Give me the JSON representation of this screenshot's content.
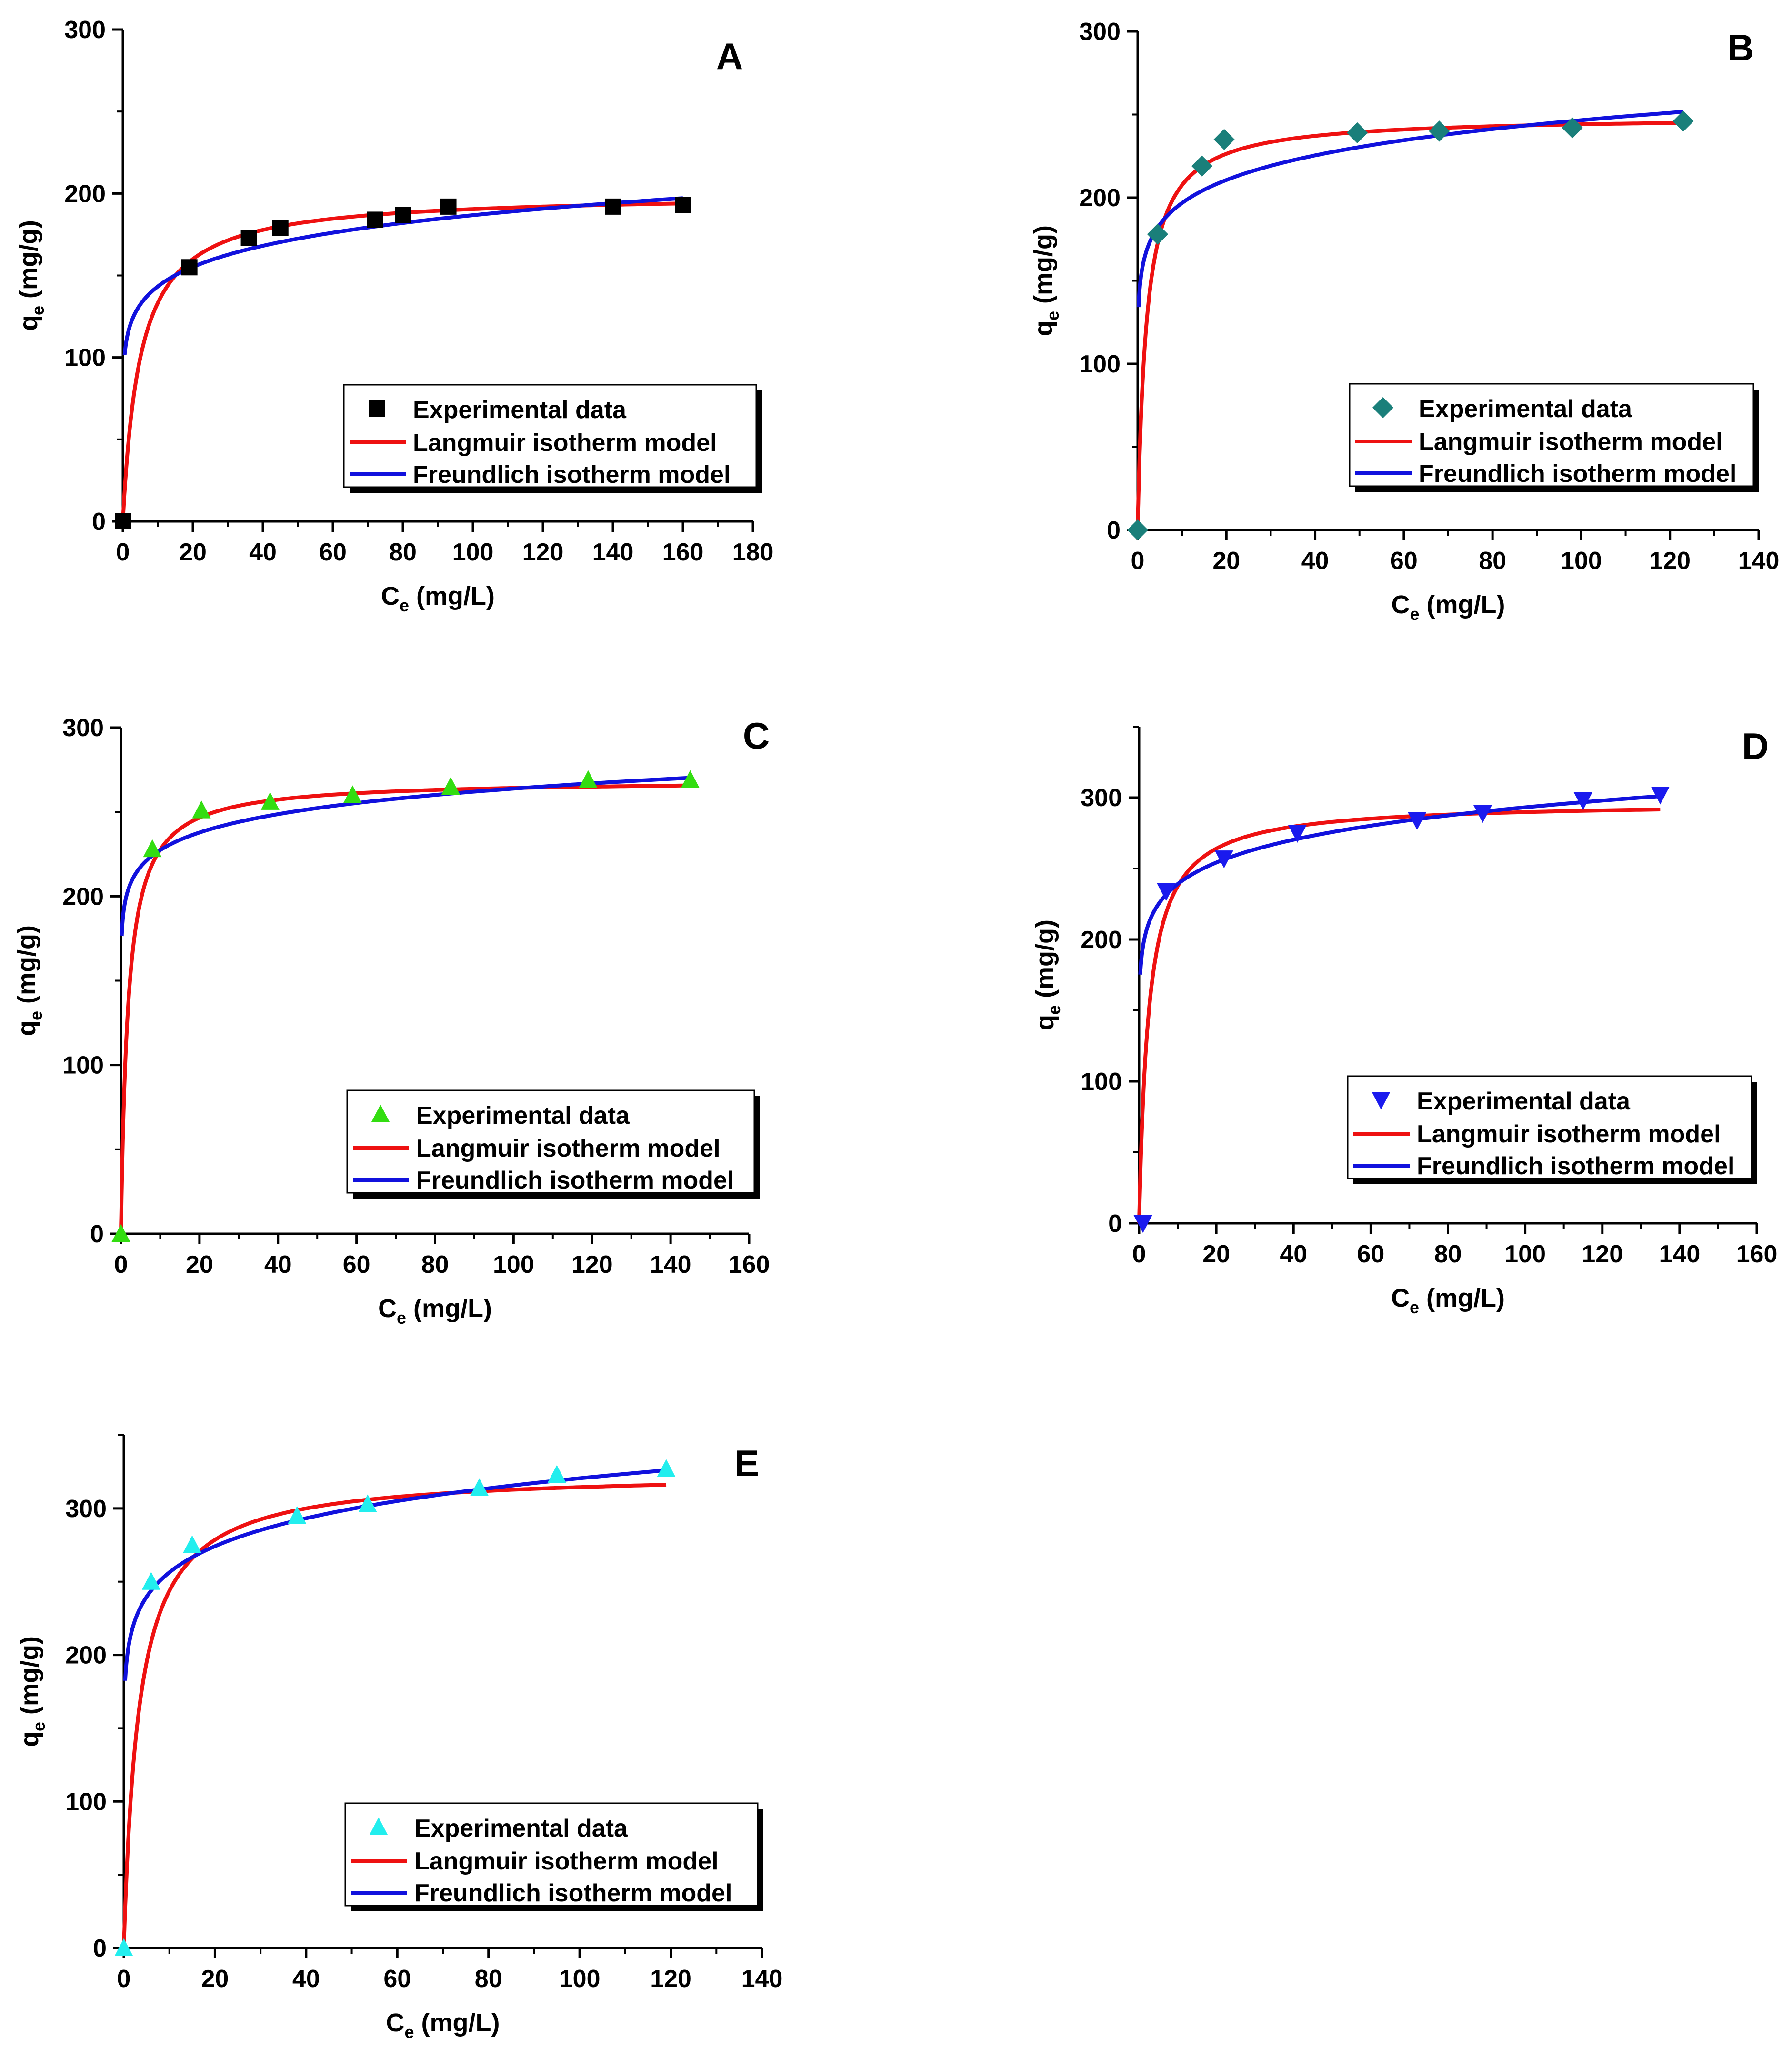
{
  "chart_data": [
    {
      "type": "scatter",
      "panel": "A",
      "xlabel": "C",
      "xlabel_sub": "e",
      "xlabel_unit": " (mg/L)",
      "ylabel": "q",
      "ylabel_sub": "e",
      "ylabel_unit": " (mg/g)",
      "xlim": [
        0,
        180
      ],
      "ylim": [
        0,
        300
      ],
      "xticks": [
        0,
        20,
        40,
        60,
        80,
        100,
        120,
        140,
        160,
        180
      ],
      "yticks": [
        0,
        100,
        200,
        300
      ],
      "marker": "square",
      "marker_color": "#000000",
      "legend": [
        "Experimental data",
        "Langmuir isotherm model",
        "Freundlich isotherm model"
      ],
      "experimental": {
        "x": [
          0,
          19,
          36,
          45,
          72,
          80,
          93,
          140,
          160
        ],
        "y": [
          0,
          155,
          173,
          179,
          184,
          187,
          192,
          192,
          193
        ]
      },
      "langmuir": {
        "qmax": 200,
        "KL": 0.2,
        "xmax": 160
      },
      "freundlich": {
        "KF": 110,
        "n": 8.7,
        "xmin": 0.5,
        "xmax": 160
      }
    },
    {
      "type": "scatter",
      "panel": "B",
      "xlabel": "C",
      "xlabel_sub": "e",
      "xlabel_unit": " (mg/L)",
      "ylabel": "q",
      "ylabel_sub": "e",
      "ylabel_unit": " (mg/g)",
      "xlim": [
        0,
        140
      ],
      "ylim": [
        0,
        300
      ],
      "xticks": [
        0,
        20,
        40,
        60,
        80,
        100,
        120,
        140
      ],
      "yticks": [
        0,
        100,
        200,
        300
      ],
      "marker": "diamond",
      "marker_color": "#1a7f7a",
      "legend": [
        "Experimental data",
        "Langmuir isotherm model",
        "Freundlich isotherm model"
      ],
      "experimental": {
        "x": [
          0,
          4.5,
          14.5,
          19.5,
          49.5,
          68,
          98,
          123
        ],
        "y": [
          0,
          178,
          219,
          235,
          239,
          240,
          242,
          246
        ]
      },
      "langmuir": {
        "qmax": 249,
        "KL": 0.5,
        "xmax": 123
      },
      "freundlich": {
        "KF": 157,
        "n": 10.2,
        "xmin": 0.2,
        "xmax": 123
      }
    },
    {
      "type": "scatter",
      "panel": "C",
      "xlabel": "C",
      "xlabel_sub": "e",
      "xlabel_unit": " (mg/L)",
      "ylabel": "q",
      "ylabel_sub": "e",
      "ylabel_unit": " (mg/g)",
      "xlim": [
        0,
        160
      ],
      "ylim": [
        0,
        300
      ],
      "xticks": [
        0,
        20,
        40,
        60,
        80,
        100,
        120,
        140,
        160
      ],
      "yticks": [
        0,
        100,
        200,
        300
      ],
      "marker": "triangle-up",
      "marker_color": "#33dd11",
      "legend": [
        "Experimental data",
        "Langmuir isotherm model",
        "Freundlich isotherm model"
      ],
      "experimental": {
        "x": [
          0,
          8,
          20.5,
          38,
          59,
          84,
          119,
          145
        ],
        "y": [
          0,
          228,
          251,
          256,
          260,
          265,
          269,
          269
        ]
      },
      "langmuir": {
        "qmax": 269,
        "KL": 0.55,
        "xmax": 145
      },
      "freundlich": {
        "KF": 196,
        "n": 15.5,
        "xmin": 0.2,
        "xmax": 145
      }
    },
    {
      "type": "scatter",
      "panel": "D",
      "xlabel": "C",
      "xlabel_sub": "e",
      "xlabel_unit": " (mg/L)",
      "ylabel": "q",
      "ylabel_sub": "e",
      "ylabel_unit": " (mg/g)",
      "xlim": [
        0,
        160
      ],
      "ylim": [
        0,
        350
      ],
      "xticks": [
        0,
        20,
        40,
        60,
        80,
        100,
        120,
        140,
        160
      ],
      "yticks": [
        0,
        100,
        200,
        300
      ],
      "marker": "triangle-down",
      "marker_color": "#1a1aee",
      "legend": [
        "Experimental data",
        "Langmuir isotherm model",
        "Freundlich isotherm model"
      ],
      "experimental": {
        "x": [
          1,
          7,
          22,
          41,
          72,
          89,
          115,
          135
        ],
        "y": [
          0,
          234,
          257,
          275,
          284,
          289,
          298,
          302
        ]
      },
      "langmuir": {
        "qmax": 297,
        "KL": 0.4,
        "xmax": 135
      },
      "freundlich": {
        "KF": 195,
        "n": 11.3,
        "xmin": 0.3,
        "xmax": 135
      }
    },
    {
      "type": "scatter",
      "panel": "E",
      "xlabel": "C",
      "xlabel_sub": "e",
      "xlabel_unit": " (mg/L)",
      "ylabel": "q",
      "ylabel_sub": "e",
      "ylabel_unit": " (mg/g)",
      "xlim": [
        0,
        140
      ],
      "ylim": [
        0,
        350
      ],
      "xticks": [
        0,
        20,
        40,
        60,
        80,
        100,
        120,
        140
      ],
      "yticks": [
        0,
        100,
        200,
        300
      ],
      "marker": "triangle-up",
      "marker_color": "#22eeee",
      "legend": [
        "Experimental data",
        "Langmuir isotherm model",
        "Freundlich isotherm model"
      ],
      "experimental": {
        "x": [
          0,
          6,
          15,
          38,
          53.5,
          78,
          95,
          119
        ],
        "y": [
          0,
          250,
          275,
          295,
          303,
          314,
          323,
          327
        ]
      },
      "langmuir": {
        "qmax": 325,
        "KL": 0.3,
        "xmax": 119
      },
      "freundlich": {
        "KF": 205,
        "n": 10.3,
        "xmin": 0.3,
        "xmax": 119
      }
    }
  ],
  "colors": {
    "langmuir": "#ee1111",
    "freundlich": "#1111dd",
    "axis": "#000000"
  }
}
